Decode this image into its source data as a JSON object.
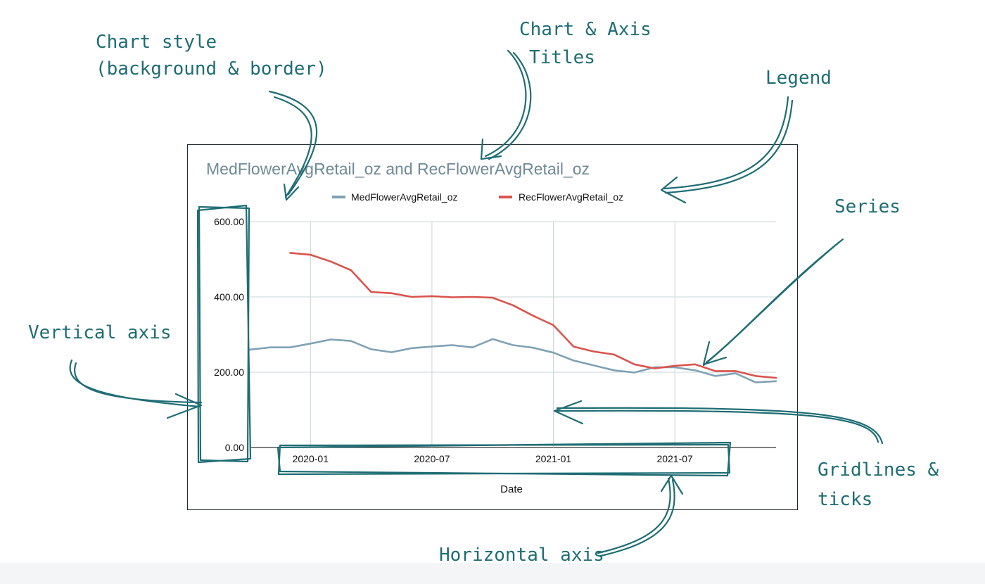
{
  "chart_data": {
    "type": "line",
    "title": "MedFlowerAvgRetail_oz and RecFlowerAvgRetail_oz",
    "xlabel": "Date",
    "ylabel": "",
    "x": [
      "2019-10",
      "2019-11",
      "2019-12",
      "2020-01",
      "2020-02",
      "2020-03",
      "2020-04",
      "2020-05",
      "2020-06",
      "2020-07",
      "2020-08",
      "2020-09",
      "2020-10",
      "2020-11",
      "2020-12",
      "2021-01",
      "2021-02",
      "2021-03",
      "2021-04",
      "2021-05",
      "2021-06",
      "2021-07",
      "2021-08",
      "2021-09",
      "2021-10",
      "2021-11",
      "2021-12"
    ],
    "xlim": [
      "2019-10",
      "2021-12"
    ],
    "ylim": [
      0,
      600
    ],
    "y_ticks": [
      "0.00",
      "200.00",
      "400.00",
      "600.00"
    ],
    "x_ticks": [
      "2020-01",
      "2020-07",
      "2021-01",
      "2021-07"
    ],
    "grid": true,
    "legend_position": "top",
    "series": [
      {
        "name": "MedFlowerAvgRetail_oz",
        "color": "#7fa2b4",
        "values": [
          260,
          266,
          266,
          276,
          287,
          283,
          261,
          253,
          264,
          268,
          272,
          266,
          288,
          272,
          265,
          252,
          231,
          218,
          205,
          199,
          213,
          213,
          205,
          190,
          197,
          173,
          176
        ]
      },
      {
        "name": "RecFlowerAvgRetail_oz",
        "color": "#d9544d",
        "values": [
          null,
          null,
          517,
          512,
          494,
          471,
          413,
          410,
          400,
          402,
          399,
          400,
          398,
          378,
          350,
          325,
          268,
          255,
          247,
          221,
          210,
          217,
          221,
          203,
          203,
          190,
          185
        ]
      }
    ]
  },
  "annotations": {
    "chart_style": [
      "Chart style",
      "(background & border)"
    ],
    "titles": [
      "Chart & Axis",
      "Titles"
    ],
    "legend": "Legend",
    "series": "Series",
    "vertical_axis": "Vertical axis",
    "gridlines": [
      "Gridlines &",
      "ticks"
    ],
    "horizontal_axis": "Horizontal axis"
  }
}
